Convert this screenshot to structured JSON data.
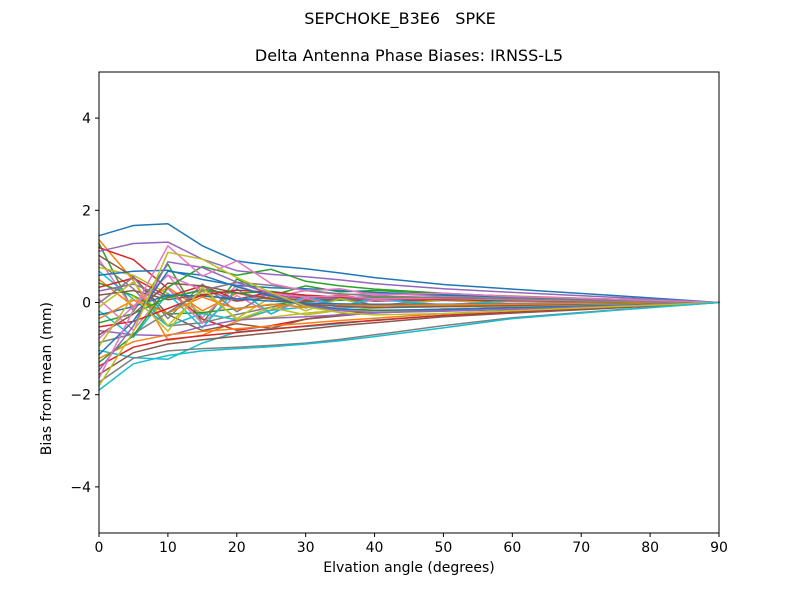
{
  "figure": {
    "suptitle": "SEPCHOKE_B3E6   SPKE",
    "background": "#ffffff",
    "frame_color": "#000000",
    "text_color": "#000000"
  },
  "chart_data": {
    "type": "line",
    "suptitle": "SEPCHOKE_B3E6   SPKE",
    "title": "Delta Antenna Phase Biases: IRNSS-L5",
    "xlabel": "Elvation angle (degrees)",
    "ylabel": "Bias from mean (mm)",
    "xlim": [
      0,
      90
    ],
    "ylim": [
      -5,
      5
    ],
    "xticks": [
      0,
      10,
      20,
      30,
      40,
      50,
      60,
      70,
      80,
      90
    ],
    "yticks": [
      -4,
      -2,
      0,
      2,
      4
    ],
    "grid": false,
    "legend": false,
    "line_width": 1.5,
    "x": [
      0,
      5,
      10,
      15,
      20,
      25,
      30,
      35,
      40,
      50,
      60,
      75,
      90
    ],
    "series": [
      {
        "color": "#1f77b4",
        "values": [
          1.45,
          1.67,
          1.71,
          1.23,
          0.9,
          0.8,
          0.73,
          0.64,
          0.54,
          0.39,
          0.29,
          0.15,
          0
        ]
      },
      {
        "color": "#ff7f0e",
        "values": [
          1.36,
          0.48,
          -0.82,
          -0.71,
          -0.41,
          -0.16,
          0.07,
          0.16,
          0.2,
          0.18,
          0.14,
          0.07,
          0
        ]
      },
      {
        "color": "#2ca02c",
        "values": [
          1.28,
          -0.19,
          0.83,
          -0.45,
          0.51,
          0.15,
          0.36,
          0.23,
          0.26,
          0.19,
          0.13,
          0.06,
          0
        ]
      },
      {
        "color": "#d62728",
        "values": [
          1.19,
          0.93,
          0.3,
          -0.36,
          -0.6,
          -0.5,
          -0.36,
          -0.26,
          -0.19,
          -0.14,
          -0.11,
          -0.06,
          0
        ]
      },
      {
        "color": "#9467bd",
        "values": [
          1.11,
          1.28,
          1.31,
          0.94,
          0.69,
          0.61,
          0.56,
          0.49,
          0.41,
          0.3,
          0.22,
          0.11,
          0
        ]
      },
      {
        "color": "#8c564b",
        "values": [
          1.02,
          0.56,
          -0.26,
          -0.61,
          -0.46,
          -0.56,
          -0.36,
          -0.29,
          -0.22,
          -0.15,
          -0.1,
          -0.05,
          0
        ]
      },
      {
        "color": "#e377c2",
        "values": [
          0.93,
          -0.14,
          0.6,
          -0.33,
          0.37,
          0.11,
          0.26,
          0.17,
          0.19,
          0.14,
          0.09,
          0.05,
          0
        ]
      },
      {
        "color": "#7f7f7f",
        "values": [
          0.85,
          0.3,
          -0.51,
          -0.44,
          -0.26,
          -0.1,
          0.04,
          0.1,
          0.13,
          0.11,
          0.09,
          0.04,
          0
        ]
      },
      {
        "color": "#bcbd22",
        "values": [
          0.76,
          0.59,
          0.19,
          -0.23,
          -0.38,
          -0.32,
          -0.23,
          -0.17,
          -0.12,
          -0.09,
          -0.07,
          -0.04,
          0
        ]
      },
      {
        "color": "#17becf",
        "values": [
          0.68,
          0.07,
          -0.51,
          -0.24,
          -0.37,
          -0.17,
          -0.1,
          -0.12,
          -0.07,
          -0.08,
          -0.05,
          -0.03,
          0
        ]
      },
      {
        "color": "#1f77b4",
        "values": [
          0.59,
          0.68,
          0.7,
          0.5,
          0.37,
          0.32,
          0.3,
          0.26,
          0.22,
          0.16,
          0.12,
          0.06,
          0
        ]
      },
      {
        "color": "#ff7f0e",
        "values": [
          0.5,
          -0.08,
          0.33,
          -0.18,
          0.2,
          0.06,
          0.14,
          0.09,
          0.1,
          0.08,
          0.05,
          0.03,
          0
        ]
      },
      {
        "color": "#2ca02c",
        "values": [
          0.42,
          0.15,
          -0.25,
          -0.22,
          -0.13,
          -0.05,
          0.02,
          0.05,
          0.06,
          0.05,
          0.04,
          0.02,
          0
        ]
      },
      {
        "color": "#d62728",
        "values": [
          0.33,
          0.53,
          0.13,
          0.36,
          0.07,
          0.23,
          0.08,
          0.15,
          0.07,
          0.1,
          0.05,
          0.03,
          0
        ]
      },
      {
        "color": "#9467bd",
        "values": [
          0.25,
          0.4,
          0.1,
          0.28,
          0.05,
          0.18,
          0.06,
          0.11,
          0.05,
          0.08,
          0.04,
          0.02,
          0
        ]
      },
      {
        "color": "#8c564b",
        "values": [
          0.16,
          0.26,
          0.06,
          0.18,
          0.03,
          0.11,
          0.04,
          0.07,
          0.03,
          0.05,
          0.02,
          0.01,
          0
        ]
      },
      {
        "color": "#e377c2",
        "values": [
          0.07,
          -0.6,
          0.3,
          -0.45,
          0.15,
          -0.25,
          0.1,
          -0.12,
          0.06,
          -0.05,
          0.03,
          0.01,
          0
        ]
      },
      {
        "color": "#7f7f7f",
        "values": [
          -0.01,
          0.55,
          -0.35,
          0.4,
          -0.2,
          0.22,
          -0.12,
          0.1,
          -0.06,
          0.05,
          -0.03,
          -0.01,
          0
        ]
      },
      {
        "color": "#bcbd22",
        "values": [
          -0.1,
          0.45,
          -0.5,
          0.25,
          -0.35,
          0.12,
          -0.18,
          0.08,
          -0.1,
          0.06,
          -0.04,
          -0.02,
          0
        ]
      },
      {
        "color": "#17becf",
        "values": [
          -0.18,
          -0.75,
          0.2,
          -0.55,
          0.3,
          -0.25,
          0.15,
          -0.1,
          0.1,
          -0.08,
          0.05,
          0.02,
          0
        ]
      },
      {
        "color": "#1f77b4",
        "values": [
          -0.27,
          -0.09,
          0.16,
          0.14,
          0.08,
          0.03,
          -0.01,
          -0.03,
          -0.04,
          -0.04,
          -0.03,
          -0.01,
          0
        ]
      },
      {
        "color": "#ff7f0e",
        "values": [
          -0.35,
          0.05,
          -0.23,
          0.12,
          -0.14,
          -0.04,
          -0.1,
          -0.06,
          -0.07,
          -0.05,
          -0.04,
          -0.02,
          0
        ]
      },
      {
        "color": "#2ca02c",
        "values": [
          -0.44,
          -0.24,
          0.11,
          0.26,
          0.2,
          0.24,
          0.15,
          0.12,
          0.1,
          0.07,
          0.04,
          0.02,
          0
        ]
      },
      {
        "color": "#d62728",
        "values": [
          -0.53,
          -0.41,
          -0.13,
          0.16,
          0.27,
          0.22,
          0.16,
          0.12,
          0.08,
          0.06,
          0.05,
          0.03,
          0
        ]
      },
      {
        "color": "#9467bd",
        "values": [
          -0.61,
          -0.7,
          -0.72,
          -0.52,
          -0.38,
          -0.34,
          -0.31,
          -0.27,
          -0.23,
          -0.16,
          -0.12,
          -0.06,
          0
        ]
      },
      {
        "color": "#8c564b",
        "values": [
          -0.7,
          -0.25,
          0.42,
          0.36,
          0.21,
          0.08,
          -0.04,
          -0.08,
          -0.11,
          -0.09,
          -0.07,
          -0.04,
          0
        ]
      },
      {
        "color": "#e377c2",
        "values": [
          -0.78,
          -0.08,
          0.59,
          0.27,
          0.43,
          0.2,
          0.12,
          0.14,
          0.08,
          0.09,
          0.06,
          0.03,
          0
        ]
      },
      {
        "color": "#7f7f7f",
        "values": [
          -0.87,
          -0.68,
          -0.22,
          0.26,
          0.44,
          0.37,
          0.26,
          0.19,
          0.14,
          0.1,
          0.08,
          0.04,
          0
        ]
      },
      {
        "color": "#bcbd22",
        "values": [
          -0.95,
          0.14,
          -0.62,
          0.33,
          -0.38,
          -0.11,
          -0.27,
          -0.17,
          -0.19,
          -0.14,
          -0.1,
          -0.05,
          0
        ]
      },
      {
        "color": "#17becf",
        "values": [
          -1.04,
          -1.2,
          -1.23,
          -0.88,
          -0.64,
          -0.57,
          -0.52,
          -0.46,
          -0.38,
          -0.28,
          -0.21,
          -0.1,
          0
        ]
      },
      {
        "color": "#1f77b4",
        "values": [
          -1.13,
          -0.4,
          0.68,
          0.59,
          0.34,
          0.14,
          -0.06,
          -0.14,
          -0.17,
          -0.15,
          -0.11,
          -0.06,
          0
        ]
      },
      {
        "color": "#ff7f0e",
        "values": [
          -1.21,
          -0.85,
          -0.7,
          -0.63,
          -0.57,
          -0.51,
          -0.45,
          -0.39,
          -0.34,
          -0.24,
          -0.18,
          -0.1,
          0
        ]
      },
      {
        "color": "#2ca02c",
        "values": [
          -1.3,
          -0.72,
          0.33,
          0.78,
          0.59,
          0.72,
          0.46,
          0.36,
          0.29,
          0.2,
          0.13,
          0.07,
          0
        ]
      },
      {
        "color": "#d62728",
        "values": [
          -1.38,
          -0.97,
          -0.8,
          -0.72,
          -0.65,
          -0.58,
          -0.51,
          -0.44,
          -0.39,
          -0.28,
          -0.21,
          -0.11,
          0
        ]
      },
      {
        "color": "#9467bd",
        "values": [
          -1.47,
          -0.51,
          0.88,
          0.76,
          0.44,
          0.18,
          -0.07,
          -0.18,
          -0.22,
          -0.19,
          -0.15,
          -0.07,
          0
        ]
      },
      {
        "color": "#8c564b",
        "values": [
          -1.56,
          -1.09,
          -0.9,
          -0.81,
          -0.73,
          -0.66,
          -0.58,
          -0.5,
          -0.44,
          -0.31,
          -0.23,
          -0.12,
          0
        ]
      },
      {
        "color": "#e377c2",
        "values": [
          -1.64,
          -0.16,
          1.23,
          0.57,
          0.9,
          0.41,
          0.25,
          0.3,
          0.16,
          0.2,
          0.13,
          0.07,
          0
        ]
      },
      {
        "color": "#7f7f7f",
        "values": [
          -1.73,
          -1.21,
          -1.05,
          -1.0,
          -0.97,
          -0.93,
          -0.88,
          -0.8,
          -0.7,
          -0.5,
          -0.33,
          -0.16,
          0
        ]
      },
      {
        "color": "#bcbd22",
        "values": [
          -1.81,
          -0.63,
          1.09,
          0.94,
          0.54,
          0.22,
          -0.09,
          -0.22,
          -0.27,
          -0.24,
          -0.18,
          -0.09,
          0
        ]
      },
      {
        "color": "#17becf",
        "values": [
          -1.9,
          -1.33,
          -1.15,
          -1.05,
          -1.0,
          -0.96,
          -0.9,
          -0.83,
          -0.74,
          -0.55,
          -0.35,
          -0.17,
          0
        ]
      }
    ]
  }
}
